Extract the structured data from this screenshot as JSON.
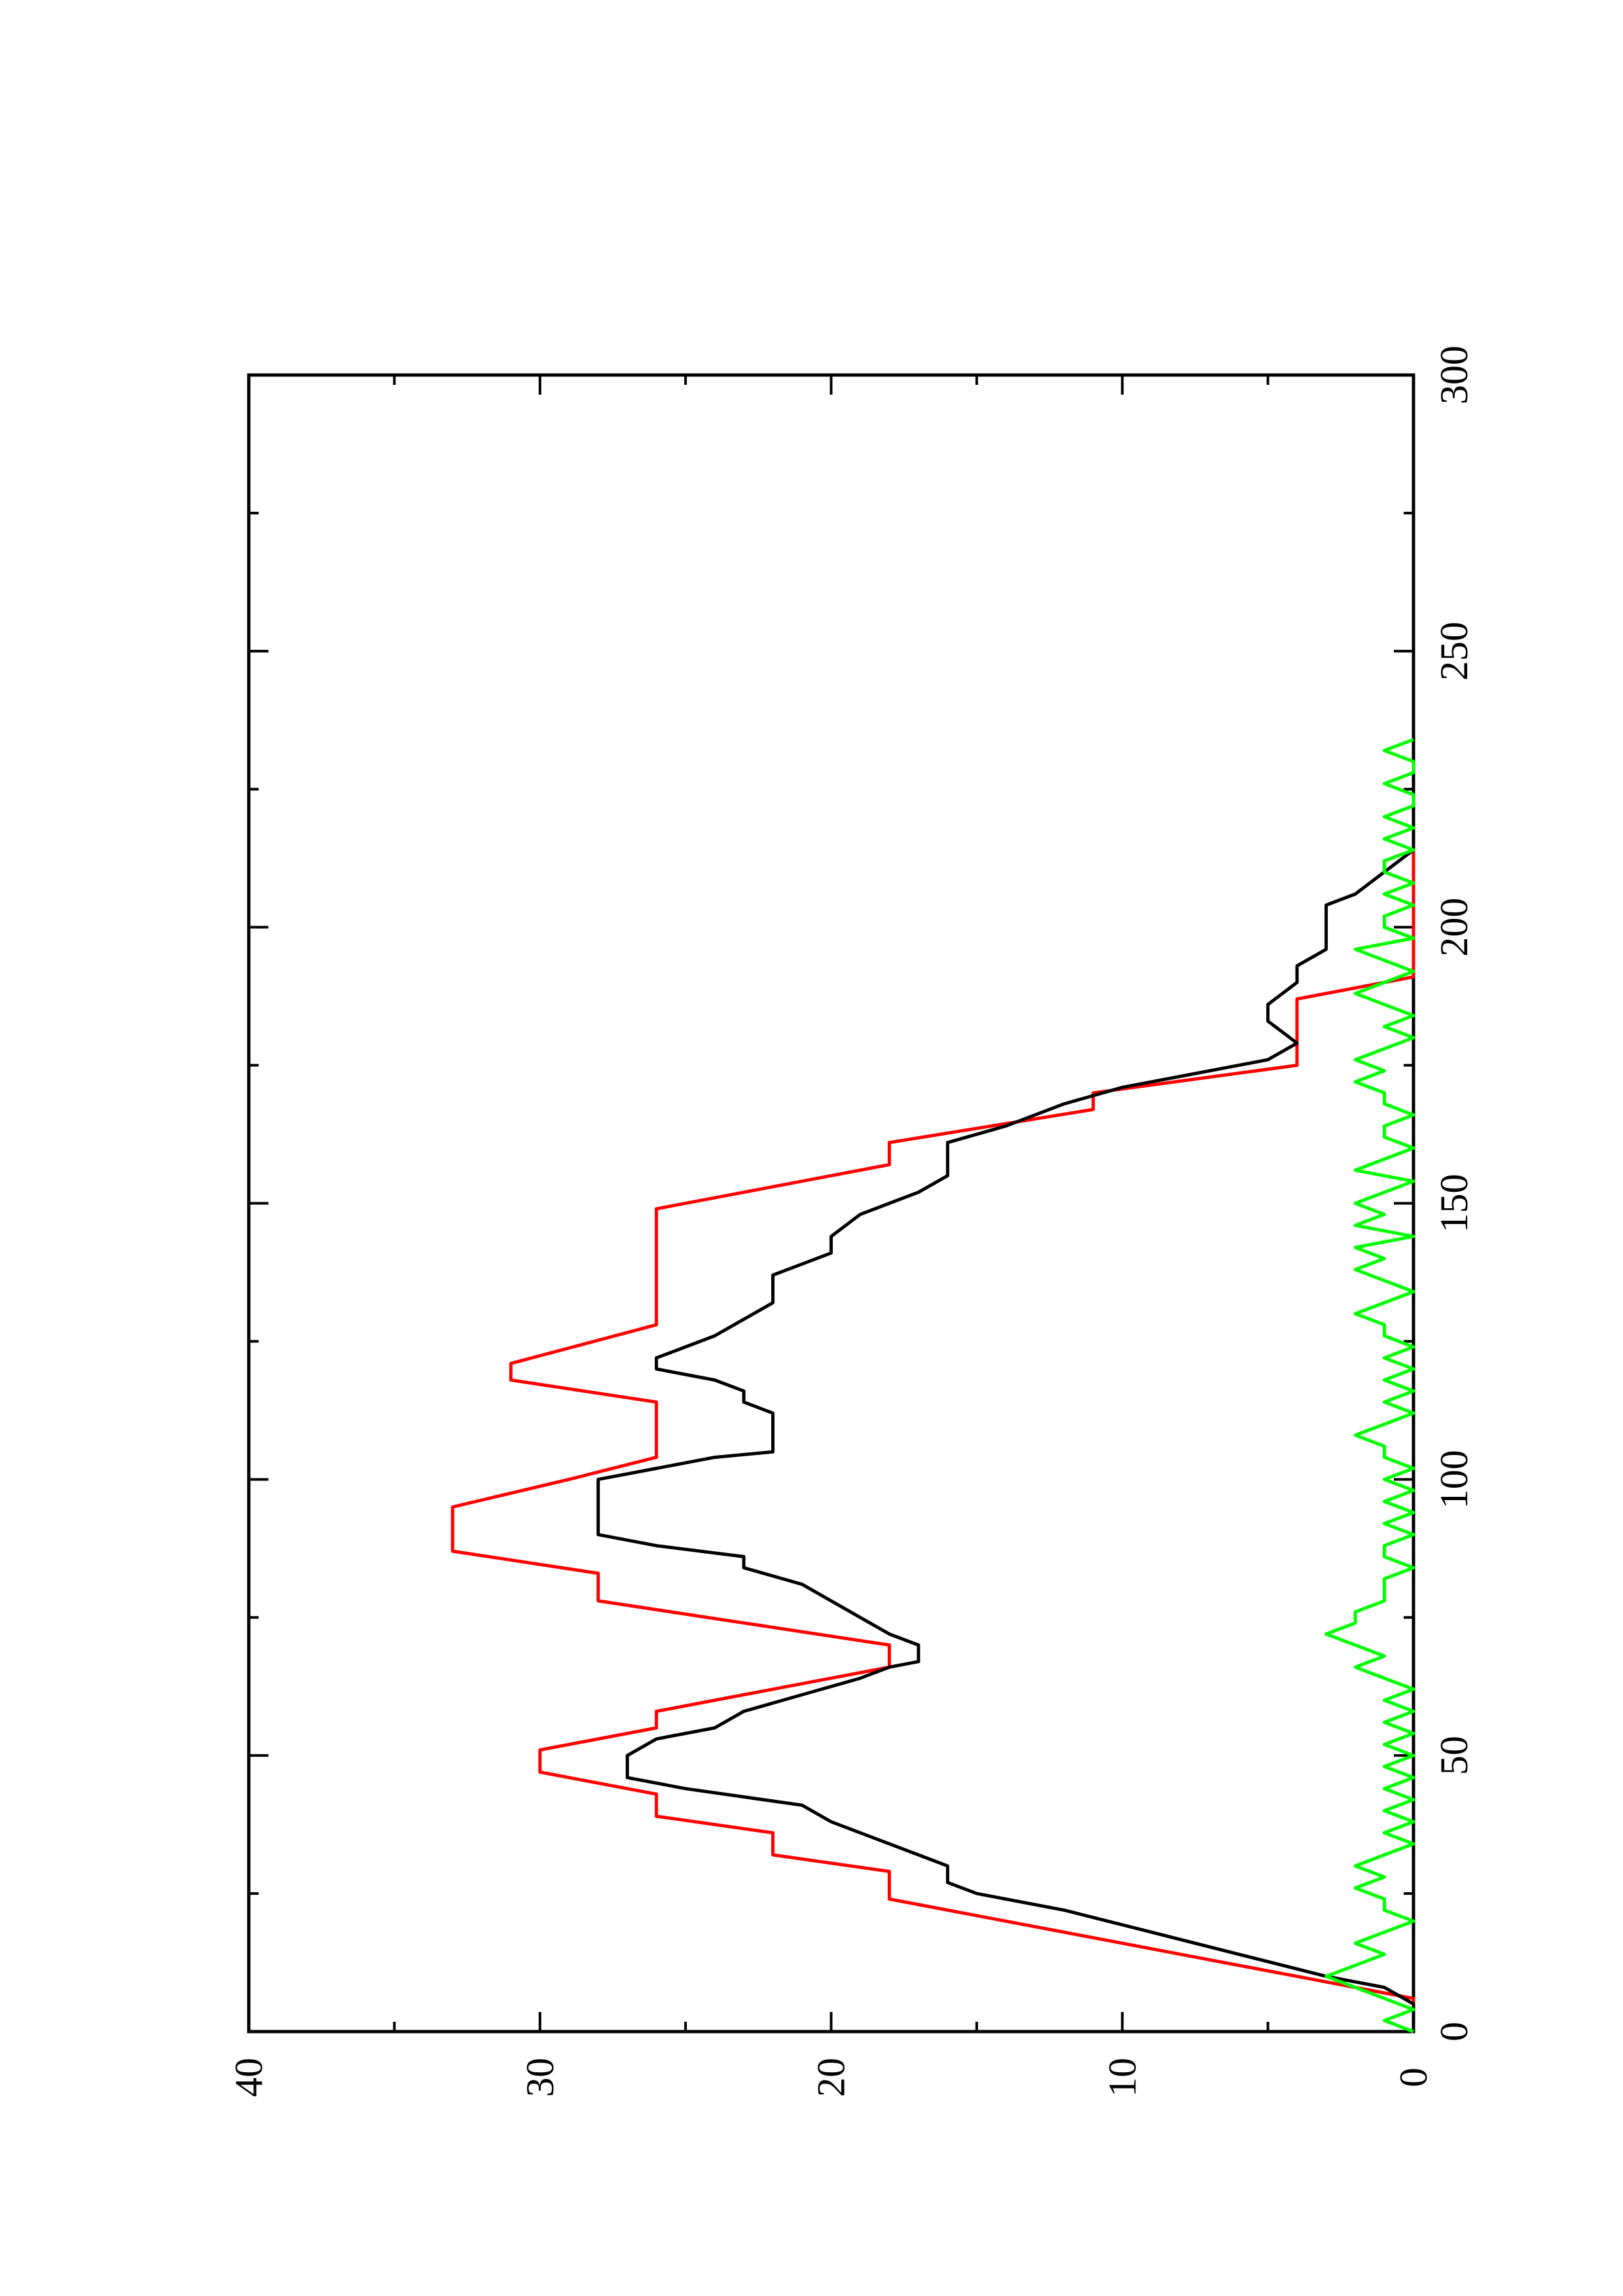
{
  "chart_data": {
    "type": "line",
    "orientation": "rotated-90-ccw",
    "title": "",
    "xlabel": "",
    "ylabel": "",
    "xlim": [
      0,
      300
    ],
    "ylim": [
      0,
      40
    ],
    "x_ticks": [
      "0",
      "50",
      "100",
      "150",
      "200",
      "250",
      "300"
    ],
    "y_ticks": [
      "0",
      "10",
      "20",
      "30",
      "40"
    ],
    "grid": false,
    "legend": "none",
    "series": [
      {
        "color": "#ff0000",
        "points": [
          [
            0,
            0
          ],
          [
            6,
            0
          ],
          [
            24,
            18
          ],
          [
            29,
            18
          ],
          [
            32,
            22
          ],
          [
            36,
            22
          ],
          [
            39,
            26
          ],
          [
            43,
            26
          ],
          [
            47,
            30
          ],
          [
            51,
            30
          ],
          [
            55,
            26
          ],
          [
            58,
            26
          ],
          [
            62,
            22
          ],
          [
            66,
            18
          ],
          [
            70,
            18
          ],
          [
            78,
            28
          ],
          [
            83,
            28
          ],
          [
            87,
            33
          ],
          [
            92,
            33
          ],
          [
            95,
            33
          ],
          [
            100,
            29
          ],
          [
            104,
            26
          ],
          [
            114,
            26
          ],
          [
            118,
            31
          ],
          [
            121,
            31
          ],
          [
            128,
            26
          ],
          [
            136,
            26
          ],
          [
            144,
            26
          ],
          [
            149,
            26
          ],
          [
            153,
            22
          ],
          [
            157,
            18
          ],
          [
            161,
            18
          ],
          [
            167,
            11
          ],
          [
            170,
            11
          ],
          [
            175,
            4
          ],
          [
            180,
            4
          ],
          [
            187,
            4
          ],
          [
            191,
            0
          ],
          [
            300,
            0
          ]
        ]
      },
      {
        "color": "#000000",
        "points": [
          [
            0,
            0
          ],
          [
            3,
            0
          ],
          [
            5,
            0
          ],
          [
            8,
            1
          ],
          [
            10,
            3
          ],
          [
            14,
            6
          ],
          [
            18,
            9
          ],
          [
            22,
            12
          ],
          [
            25,
            15
          ],
          [
            27,
            16
          ],
          [
            30,
            16
          ],
          [
            32,
            17
          ],
          [
            36,
            19
          ],
          [
            38,
            20
          ],
          [
            41,
            21
          ],
          [
            44,
            25
          ],
          [
            46,
            27
          ],
          [
            50,
            27
          ],
          [
            53,
            26
          ],
          [
            55,
            24
          ],
          [
            58,
            23
          ],
          [
            61,
            21
          ],
          [
            64,
            19
          ],
          [
            66,
            18
          ],
          [
            67,
            17
          ],
          [
            70,
            17
          ],
          [
            72,
            18
          ],
          [
            75,
            19
          ],
          [
            78,
            20
          ],
          [
            81,
            21
          ],
          [
            84,
            23
          ],
          [
            86,
            23
          ],
          [
            88,
            26
          ],
          [
            90,
            28
          ],
          [
            96,
            28
          ],
          [
            100,
            28
          ],
          [
            102,
            26
          ],
          [
            104,
            24
          ],
          [
            105,
            22
          ],
          [
            108,
            22
          ],
          [
            112,
            22
          ],
          [
            114,
            23
          ],
          [
            116,
            23
          ],
          [
            118,
            24
          ],
          [
            120,
            26
          ],
          [
            122,
            26
          ],
          [
            124,
            25
          ],
          [
            126,
            24
          ],
          [
            129,
            23
          ],
          [
            132,
            22
          ],
          [
            135,
            22
          ],
          [
            137,
            22
          ],
          [
            139,
            21
          ],
          [
            141,
            20
          ],
          [
            144,
            20
          ],
          [
            148,
            19
          ],
          [
            150,
            18
          ],
          [
            152,
            17
          ],
          [
            155,
            16
          ],
          [
            159,
            16
          ],
          [
            161,
            16
          ],
          [
            164,
            14
          ],
          [
            168,
            12
          ],
          [
            171,
            10
          ],
          [
            173,
            8
          ],
          [
            175,
            6
          ],
          [
            176,
            5
          ],
          [
            179,
            4
          ],
          [
            183,
            5
          ],
          [
            186,
            5
          ],
          [
            190,
            4
          ],
          [
            193,
            4
          ],
          [
            196,
            3
          ],
          [
            200,
            3
          ],
          [
            204,
            3
          ],
          [
            206,
            2
          ],
          [
            210,
            1
          ],
          [
            214,
            0
          ],
          [
            218,
            0
          ],
          [
            222,
            0
          ],
          [
            226,
            0
          ],
          [
            230,
            0
          ],
          [
            234,
            0
          ],
          [
            300,
            0
          ]
        ]
      },
      {
        "color": "#00ff00",
        "points": [
          [
            0,
            0
          ],
          [
            2,
            1
          ],
          [
            4,
            0
          ],
          [
            6,
            1
          ],
          [
            8,
            2
          ],
          [
            10,
            3
          ],
          [
            12,
            2
          ],
          [
            14,
            1
          ],
          [
            16,
            2
          ],
          [
            18,
            1
          ],
          [
            20,
            0
          ],
          [
            22,
            1
          ],
          [
            24,
            1
          ],
          [
            26,
            2
          ],
          [
            28,
            1
          ],
          [
            30,
            2
          ],
          [
            32,
            1
          ],
          [
            34,
            0
          ],
          [
            36,
            1
          ],
          [
            38,
            0
          ],
          [
            40,
            1
          ],
          [
            42,
            0
          ],
          [
            44,
            1
          ],
          [
            46,
            0
          ],
          [
            48,
            1
          ],
          [
            50,
            0
          ],
          [
            52,
            1
          ],
          [
            54,
            0
          ],
          [
            56,
            1
          ],
          [
            58,
            0
          ],
          [
            60,
            1
          ],
          [
            62,
            0
          ],
          [
            64,
            1
          ],
          [
            66,
            2
          ],
          [
            68,
            1
          ],
          [
            70,
            2
          ],
          [
            72,
            3
          ],
          [
            74,
            2
          ],
          [
            76,
            2
          ],
          [
            78,
            1
          ],
          [
            80,
            1
          ],
          [
            82,
            1
          ],
          [
            84,
            0
          ],
          [
            86,
            1
          ],
          [
            88,
            1
          ],
          [
            90,
            0
          ],
          [
            92,
            1
          ],
          [
            94,
            0
          ],
          [
            96,
            1
          ],
          [
            98,
            0
          ],
          [
            100,
            1
          ],
          [
            102,
            0
          ],
          [
            104,
            1
          ],
          [
            106,
            1
          ],
          [
            108,
            2
          ],
          [
            110,
            1
          ],
          [
            112,
            0
          ],
          [
            114,
            1
          ],
          [
            116,
            0
          ],
          [
            118,
            1
          ],
          [
            120,
            0
          ],
          [
            122,
            1
          ],
          [
            124,
            0
          ],
          [
            126,
            1
          ],
          [
            128,
            1
          ],
          [
            130,
            2
          ],
          [
            132,
            1
          ],
          [
            134,
            0
          ],
          [
            136,
            1
          ],
          [
            138,
            2
          ],
          [
            140,
            1
          ],
          [
            142,
            2
          ],
          [
            144,
            0
          ],
          [
            146,
            2
          ],
          [
            148,
            1
          ],
          [
            150,
            2
          ],
          [
            152,
            1
          ],
          [
            154,
            0
          ],
          [
            156,
            2
          ],
          [
            158,
            1
          ],
          [
            160,
            0
          ],
          [
            162,
            1
          ],
          [
            164,
            1
          ],
          [
            166,
            0
          ],
          [
            168,
            1
          ],
          [
            170,
            1
          ],
          [
            172,
            2
          ],
          [
            174,
            1
          ],
          [
            176,
            2
          ],
          [
            178,
            1
          ],
          [
            180,
            0
          ],
          [
            182,
            1
          ],
          [
            184,
            0
          ],
          [
            186,
            1
          ],
          [
            188,
            2
          ],
          [
            190,
            1
          ],
          [
            192,
            0
          ],
          [
            194,
            1
          ],
          [
            196,
            2
          ],
          [
            198,
            0
          ],
          [
            200,
            1
          ],
          [
            202,
            1
          ],
          [
            204,
            0
          ],
          [
            206,
            1
          ],
          [
            208,
            0
          ],
          [
            210,
            1
          ],
          [
            212,
            1
          ],
          [
            214,
            0
          ],
          [
            216,
            1
          ],
          [
            218,
            0
          ],
          [
            220,
            1
          ],
          [
            222,
            0
          ],
          [
            224,
            0
          ],
          [
            226,
            1
          ],
          [
            228,
            0
          ],
          [
            230,
            0
          ],
          [
            232,
            1
          ],
          [
            234,
            0
          ]
        ]
      }
    ]
  }
}
